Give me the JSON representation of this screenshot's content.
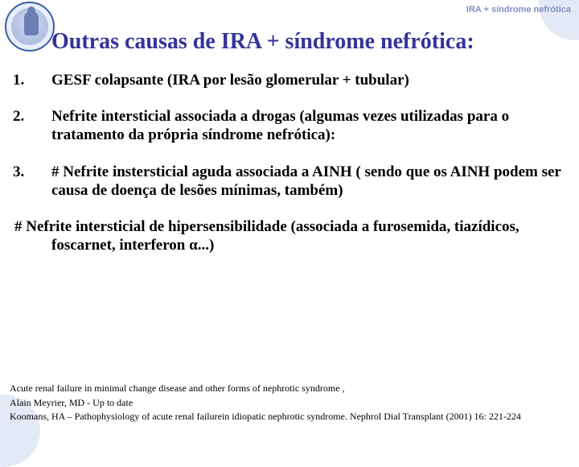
{
  "header_label": "IRA + síndrome nefrótica",
  "title": "Outras causas de IRA + síndrome nefrótica:",
  "items": {
    "n1": "1.",
    "t1": "GESF colapsante (IRA por lesão glomerular + tubular)",
    "n2": "2.",
    "t2": "Nefrite intersticial associada a drogas (algumas vezes utilizadas para o tratamento da própria síndrome nefrótica):",
    "n3": "3.",
    "t3": "# Nefrite instersticial aguda associada a AINH ( sendo que os AINH podem ser causa de doença de lesões mínimas, também)",
    "hash": "# Nefrite intersticial de hipersensibilidade (associada a furosemida, tiazídicos, foscarnet, interferon α...)"
  },
  "refs": {
    "r1": "Acute renal failure in minimal change disease and other forms of nephrotic syndrome ,",
    "r2": "Alain Meyrier, MD - Up to date",
    "r3": "Koomans, HA – Pathophysiology of acute renal failurein idiopatic nephrotic syndrome. Nephrol Dial Transplant (2001) 16: 221-224"
  }
}
